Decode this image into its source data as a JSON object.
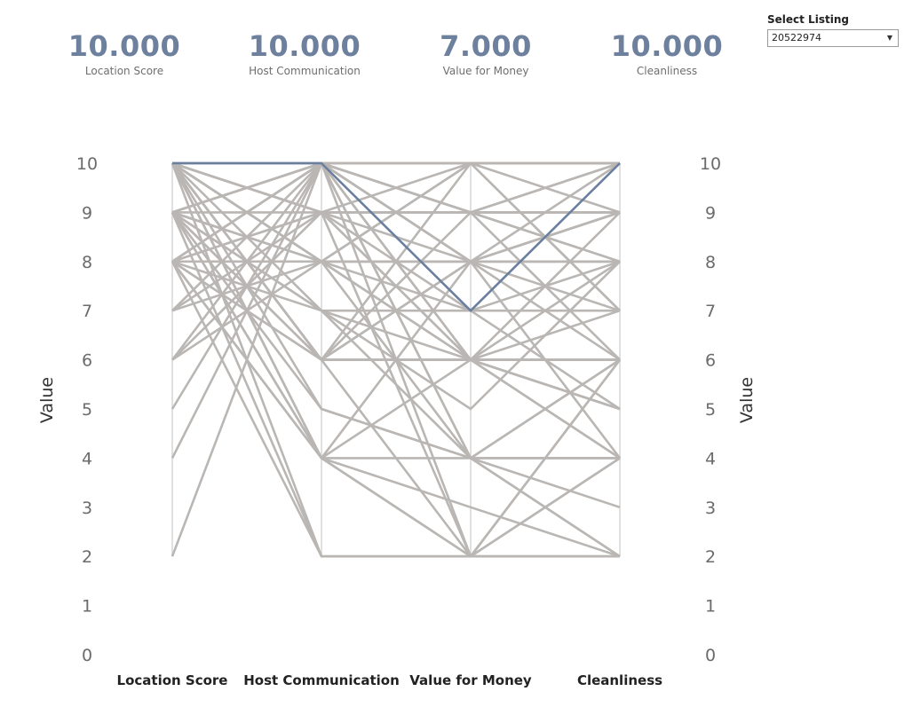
{
  "kpis": [
    {
      "value": "10.000",
      "label": "Location Score"
    },
    {
      "value": "10.000",
      "label": "Host Communication"
    },
    {
      "value": "7.000",
      "label": "Value for Money"
    },
    {
      "value": "10.000",
      "label": "Cleanliness"
    }
  ],
  "selector": {
    "label": "Select Listing",
    "value": "20522974"
  },
  "colors": {
    "line": "#b9b6b3",
    "highlight": "#6a7f9f",
    "axis": "#e0e0e0",
    "kpi": "#6d809e"
  },
  "chart_data": {
    "type": "parallel-coordinates",
    "dimensions": [
      "Location Score",
      "Host Communication",
      "Value for Money",
      "Cleanliness"
    ],
    "ylabel": "Value",
    "ylim": [
      0,
      10
    ],
    "yticks": [
      "0",
      "1",
      "2",
      "3",
      "4",
      "5",
      "6",
      "7",
      "8",
      "9",
      "10"
    ],
    "highlight": {
      "name": "20522974",
      "values": [
        10,
        10,
        7,
        10
      ]
    },
    "lines": [
      [
        10,
        10,
        10,
        10
      ],
      [
        10,
        10,
        9,
        10
      ],
      [
        10,
        10,
        8,
        9
      ],
      [
        10,
        9,
        9,
        9
      ],
      [
        10,
        8,
        8,
        8
      ],
      [
        10,
        6,
        6,
        6
      ],
      [
        10,
        10,
        6,
        8
      ],
      [
        10,
        9,
        10,
        10
      ],
      [
        10,
        2,
        2,
        2
      ],
      [
        10,
        10,
        4,
        6
      ],
      [
        9,
        10,
        10,
        10
      ],
      [
        9,
        9,
        9,
        9
      ],
      [
        9,
        8,
        8,
        8
      ],
      [
        9,
        10,
        8,
        9
      ],
      [
        9,
        6,
        6,
        7
      ],
      [
        9,
        10,
        9,
        8
      ],
      [
        9,
        8,
        10,
        10
      ],
      [
        9,
        4,
        4,
        4
      ],
      [
        9,
        7,
        6,
        6
      ],
      [
        9,
        2,
        2,
        4
      ],
      [
        8,
        10,
        10,
        9
      ],
      [
        8,
        8,
        8,
        8
      ],
      [
        8,
        9,
        8,
        7
      ],
      [
        8,
        6,
        6,
        6
      ],
      [
        8,
        10,
        9,
        10
      ],
      [
        8,
        7,
        7,
        8
      ],
      [
        8,
        2,
        2,
        2
      ],
      [
        8,
        4,
        6,
        5
      ],
      [
        7,
        10,
        8,
        9
      ],
      [
        7,
        8,
        7,
        7
      ],
      [
        7,
        9,
        9,
        8
      ],
      [
        6,
        10,
        10,
        10
      ],
      [
        6,
        8,
        8,
        6
      ],
      [
        6,
        9,
        6,
        4
      ],
      [
        5,
        10,
        9,
        9
      ],
      [
        4,
        10,
        8,
        8
      ],
      [
        2,
        10,
        10,
        10
      ],
      [
        10,
        8,
        4,
        2
      ],
      [
        10,
        6,
        2,
        4
      ],
      [
        10,
        4,
        3,
        2
      ],
      [
        9,
        5,
        4,
        3
      ],
      [
        8,
        4,
        2,
        6
      ],
      [
        10,
        6,
        9,
        6
      ],
      [
        10,
        7,
        5,
        8
      ],
      [
        9,
        6,
        10,
        7
      ],
      [
        10,
        8,
        6,
        5
      ],
      [
        9,
        7,
        4,
        6
      ],
      [
        8,
        6,
        8,
        10
      ],
      [
        10,
        4,
        2,
        2
      ],
      [
        9,
        10,
        6,
        4
      ],
      [
        10,
        9,
        7,
        5
      ],
      [
        8,
        10,
        4,
        2
      ],
      [
        10,
        6,
        8,
        4
      ],
      [
        10,
        8,
        10,
        7
      ],
      [
        9,
        4,
        8,
        9
      ],
      [
        10,
        10,
        2,
        6
      ],
      [
        8,
        9,
        6,
        9
      ],
      [
        10,
        5,
        4,
        4
      ],
      [
        10,
        9,
        2,
        2
      ],
      [
        9,
        8,
        6,
        5
      ]
    ]
  }
}
